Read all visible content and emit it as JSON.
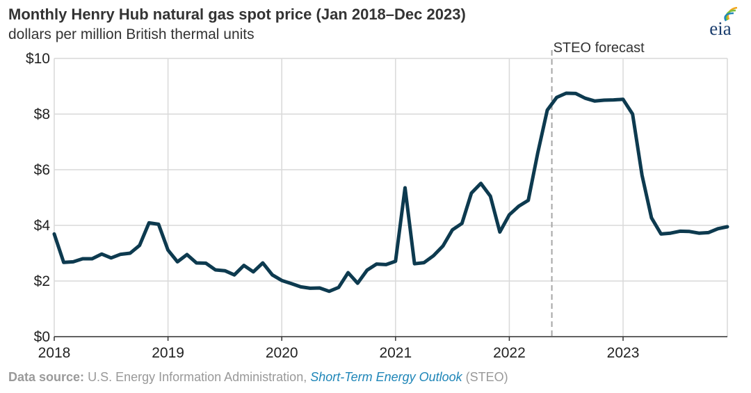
{
  "title": "Monthly Henry Hub natural gas spot price (Jan 2018–Dec 2023)",
  "subtitle": "dollars per million British thermal units",
  "logo": {
    "text": "eia",
    "icon": "eia-logo-icon",
    "colors": [
      "#f2a81d",
      "#7bbf3f",
      "#1f86b8",
      "#1b3e6e"
    ]
  },
  "forecast_label": "STEO forecast",
  "source": {
    "label": "Data source:",
    "text": "U.S. Energy Information Administration,",
    "publication": "Short-Term Energy Outlook",
    "suffix": "(STEO)"
  },
  "colors": {
    "line": "#0d3a4f",
    "grid": "#d9d9d9",
    "forecast_divider": "#a6a6a6"
  },
  "chart_data": {
    "type": "line",
    "title": "Monthly Henry Hub natural gas spot price (Jan 2018–Dec 2023)",
    "ylabel": "dollars per million British thermal units",
    "ylim": [
      0,
      10
    ],
    "yticks": [
      0,
      2,
      4,
      6,
      8,
      10
    ],
    "ytick_labels": [
      "$0",
      "$2",
      "$4",
      "$6",
      "$8",
      "$10"
    ],
    "xlim": [
      "2018-01",
      "2023-12"
    ],
    "xticks": [
      "2018-01",
      "2019-01",
      "2020-01",
      "2021-01",
      "2022-01",
      "2023-01"
    ],
    "xtick_labels": [
      "2018",
      "2019",
      "2020",
      "2021",
      "2022",
      "2023"
    ],
    "grid": true,
    "forecast_start": "2022-06",
    "series": [
      {
        "x": [
          "2018-01",
          "2018-02",
          "2018-03",
          "2018-04",
          "2018-05",
          "2018-06",
          "2018-07",
          "2018-08",
          "2018-09",
          "2018-10",
          "2018-11",
          "2018-12",
          "2019-01",
          "2019-02",
          "2019-03",
          "2019-04",
          "2019-05",
          "2019-06",
          "2019-07",
          "2019-08",
          "2019-09",
          "2019-10",
          "2019-11",
          "2019-12",
          "2020-01",
          "2020-02",
          "2020-03",
          "2020-04",
          "2020-05",
          "2020-06",
          "2020-07",
          "2020-08",
          "2020-09",
          "2020-10",
          "2020-11",
          "2020-12",
          "2021-01",
          "2021-02",
          "2021-03",
          "2021-04",
          "2021-05",
          "2021-06",
          "2021-07",
          "2021-08",
          "2021-09",
          "2021-10",
          "2021-11",
          "2021-12",
          "2022-01",
          "2022-02",
          "2022-03",
          "2022-04",
          "2022-05",
          "2022-06",
          "2022-07",
          "2022-08",
          "2022-09",
          "2022-10",
          "2022-11",
          "2022-12",
          "2023-01",
          "2023-02",
          "2023-03",
          "2023-04",
          "2023-05",
          "2023-06",
          "2023-07",
          "2023-08",
          "2023-09",
          "2023-10",
          "2023-11",
          "2023-12"
        ],
        "values": [
          3.69,
          2.67,
          2.69,
          2.8,
          2.8,
          2.97,
          2.83,
          2.96,
          3.0,
          3.28,
          4.09,
          4.04,
          3.11,
          2.69,
          2.95,
          2.65,
          2.64,
          2.4,
          2.37,
          2.22,
          2.56,
          2.33,
          2.65,
          2.22,
          2.02,
          1.91,
          1.79,
          1.74,
          1.75,
          1.63,
          1.77,
          2.3,
          1.92,
          2.39,
          2.61,
          2.59,
          2.71,
          5.35,
          2.62,
          2.66,
          2.91,
          3.26,
          3.84,
          4.07,
          5.16,
          5.51,
          5.05,
          3.76,
          4.38,
          4.69,
          4.9,
          6.6,
          8.14,
          8.6,
          8.75,
          8.74,
          8.57,
          8.47,
          8.5,
          8.51,
          8.53,
          8.0,
          5.8,
          4.27,
          3.69,
          3.72,
          3.79,
          3.78,
          3.72,
          3.74,
          3.88,
          3.95
        ]
      }
    ]
  }
}
